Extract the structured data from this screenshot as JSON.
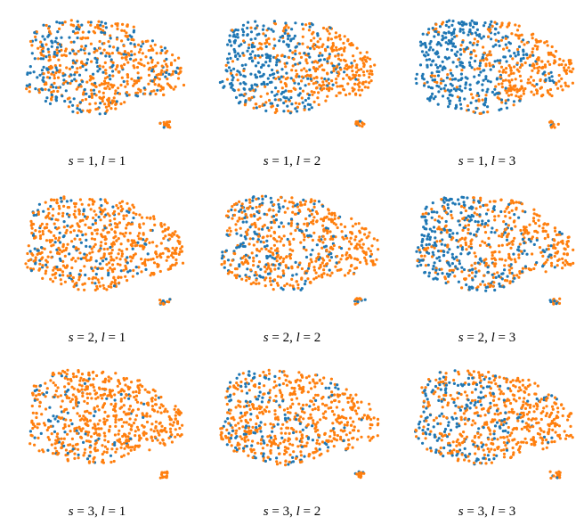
{
  "chart_data": [
    {
      "type": "scatter",
      "caption": {
        "s_label": "s",
        "s_value": "1",
        "l_label": "l",
        "l_value": "1"
      },
      "series": [
        {
          "color": "#1f77b4"
        },
        {
          "color": "#ff7f0e"
        }
      ],
      "orange_bias": 0.15,
      "cluster_strength": 0.35,
      "seed": 11
    },
    {
      "type": "scatter",
      "caption": {
        "s_label": "s",
        "s_value": "1",
        "l_label": "l",
        "l_value": "2"
      },
      "series": [
        {
          "color": "#1f77b4"
        },
        {
          "color": "#ff7f0e"
        }
      ],
      "orange_bias": 0.1,
      "cluster_strength": 0.55,
      "seed": 23
    },
    {
      "type": "scatter",
      "caption": {
        "s_label": "s",
        "s_value": "1",
        "l_label": "l",
        "l_value": "3"
      },
      "series": [
        {
          "color": "#1f77b4"
        },
        {
          "color": "#ff7f0e"
        }
      ],
      "orange_bias": 0.05,
      "cluster_strength": 0.8,
      "seed": 37
    },
    {
      "type": "scatter",
      "caption": {
        "s_label": "s",
        "s_value": "2",
        "l_label": "l",
        "l_value": "1"
      },
      "series": [
        {
          "color": "#1f77b4"
        },
        {
          "color": "#ff7f0e"
        }
      ],
      "orange_bias": 0.3,
      "cluster_strength": 0.15,
      "seed": 41
    },
    {
      "type": "scatter",
      "caption": {
        "s_label": "s",
        "s_value": "2",
        "l_label": "l",
        "l_value": "2"
      },
      "series": [
        {
          "color": "#1f77b4"
        },
        {
          "color": "#ff7f0e"
        }
      ],
      "orange_bias": 0.2,
      "cluster_strength": 0.3,
      "seed": 53
    },
    {
      "type": "scatter",
      "caption": {
        "s_label": "s",
        "s_value": "2",
        "l_label": "l",
        "l_value": "3"
      },
      "series": [
        {
          "color": "#1f77b4"
        },
        {
          "color": "#ff7f0e"
        }
      ],
      "orange_bias": 0.1,
      "cluster_strength": 0.45,
      "seed": 67
    },
    {
      "type": "scatter",
      "caption": {
        "s_label": "s",
        "s_value": "3",
        "l_label": "l",
        "l_value": "1"
      },
      "series": [
        {
          "color": "#1f77b4"
        },
        {
          "color": "#ff7f0e"
        }
      ],
      "orange_bias": 0.35,
      "cluster_strength": 0.1,
      "seed": 71
    },
    {
      "type": "scatter",
      "caption": {
        "s_label": "s",
        "s_value": "3",
        "l_label": "l",
        "l_value": "2"
      },
      "series": [
        {
          "color": "#1f77b4"
        },
        {
          "color": "#ff7f0e"
        }
      ],
      "orange_bias": 0.3,
      "cluster_strength": 0.2,
      "seed": 83
    },
    {
      "type": "scatter",
      "caption": {
        "s_label": "s",
        "s_value": "3",
        "l_label": "l",
        "l_value": "3"
      },
      "series": [
        {
          "color": "#1f77b4"
        },
        {
          "color": "#ff7f0e"
        }
      ],
      "orange_bias": 0.2,
      "cluster_strength": 0.35,
      "seed": 97
    }
  ]
}
